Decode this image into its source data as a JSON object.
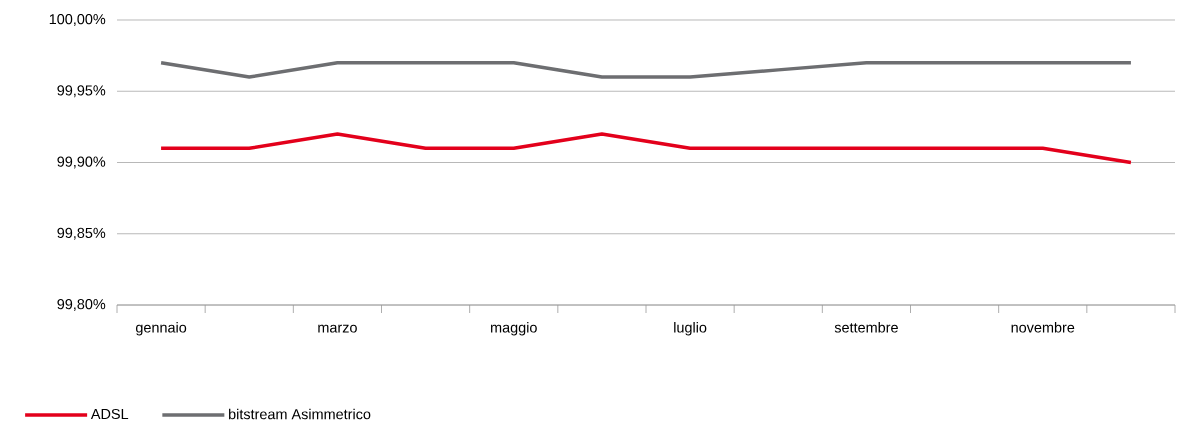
{
  "chart_data": {
    "type": "line",
    "categories": [
      "gennaio",
      null,
      "marzo",
      null,
      "maggio",
      null,
      "luglio",
      null,
      "settembre",
      null,
      "novembre",
      null
    ],
    "series": [
      {
        "name": "ADSL",
        "color": "#e3001b",
        "values": [
          99.91,
          99.91,
          99.92,
          99.91,
          99.91,
          99.92,
          99.91,
          99.91,
          99.91,
          99.91,
          99.91,
          99.9
        ]
      },
      {
        "name": "bitstream Asimmetrico",
        "color": "#6d6e71",
        "values": [
          99.97,
          99.96,
          99.97,
          99.97,
          99.97,
          99.96,
          99.96,
          99.965,
          99.97,
          99.97,
          99.97,
          99.97
        ]
      }
    ],
    "ylim": [
      99.8,
      100.0
    ],
    "yticks": [
      {
        "value": 99.8,
        "label": "99,80%"
      },
      {
        "value": 99.85,
        "label": "99,85%"
      },
      {
        "value": 99.9,
        "label": "99,90%"
      },
      {
        "value": 99.95,
        "label": "99,95%"
      },
      {
        "value": 100.0,
        "label": "100,00%"
      }
    ],
    "grid": "y",
    "legend": "bottom left"
  }
}
